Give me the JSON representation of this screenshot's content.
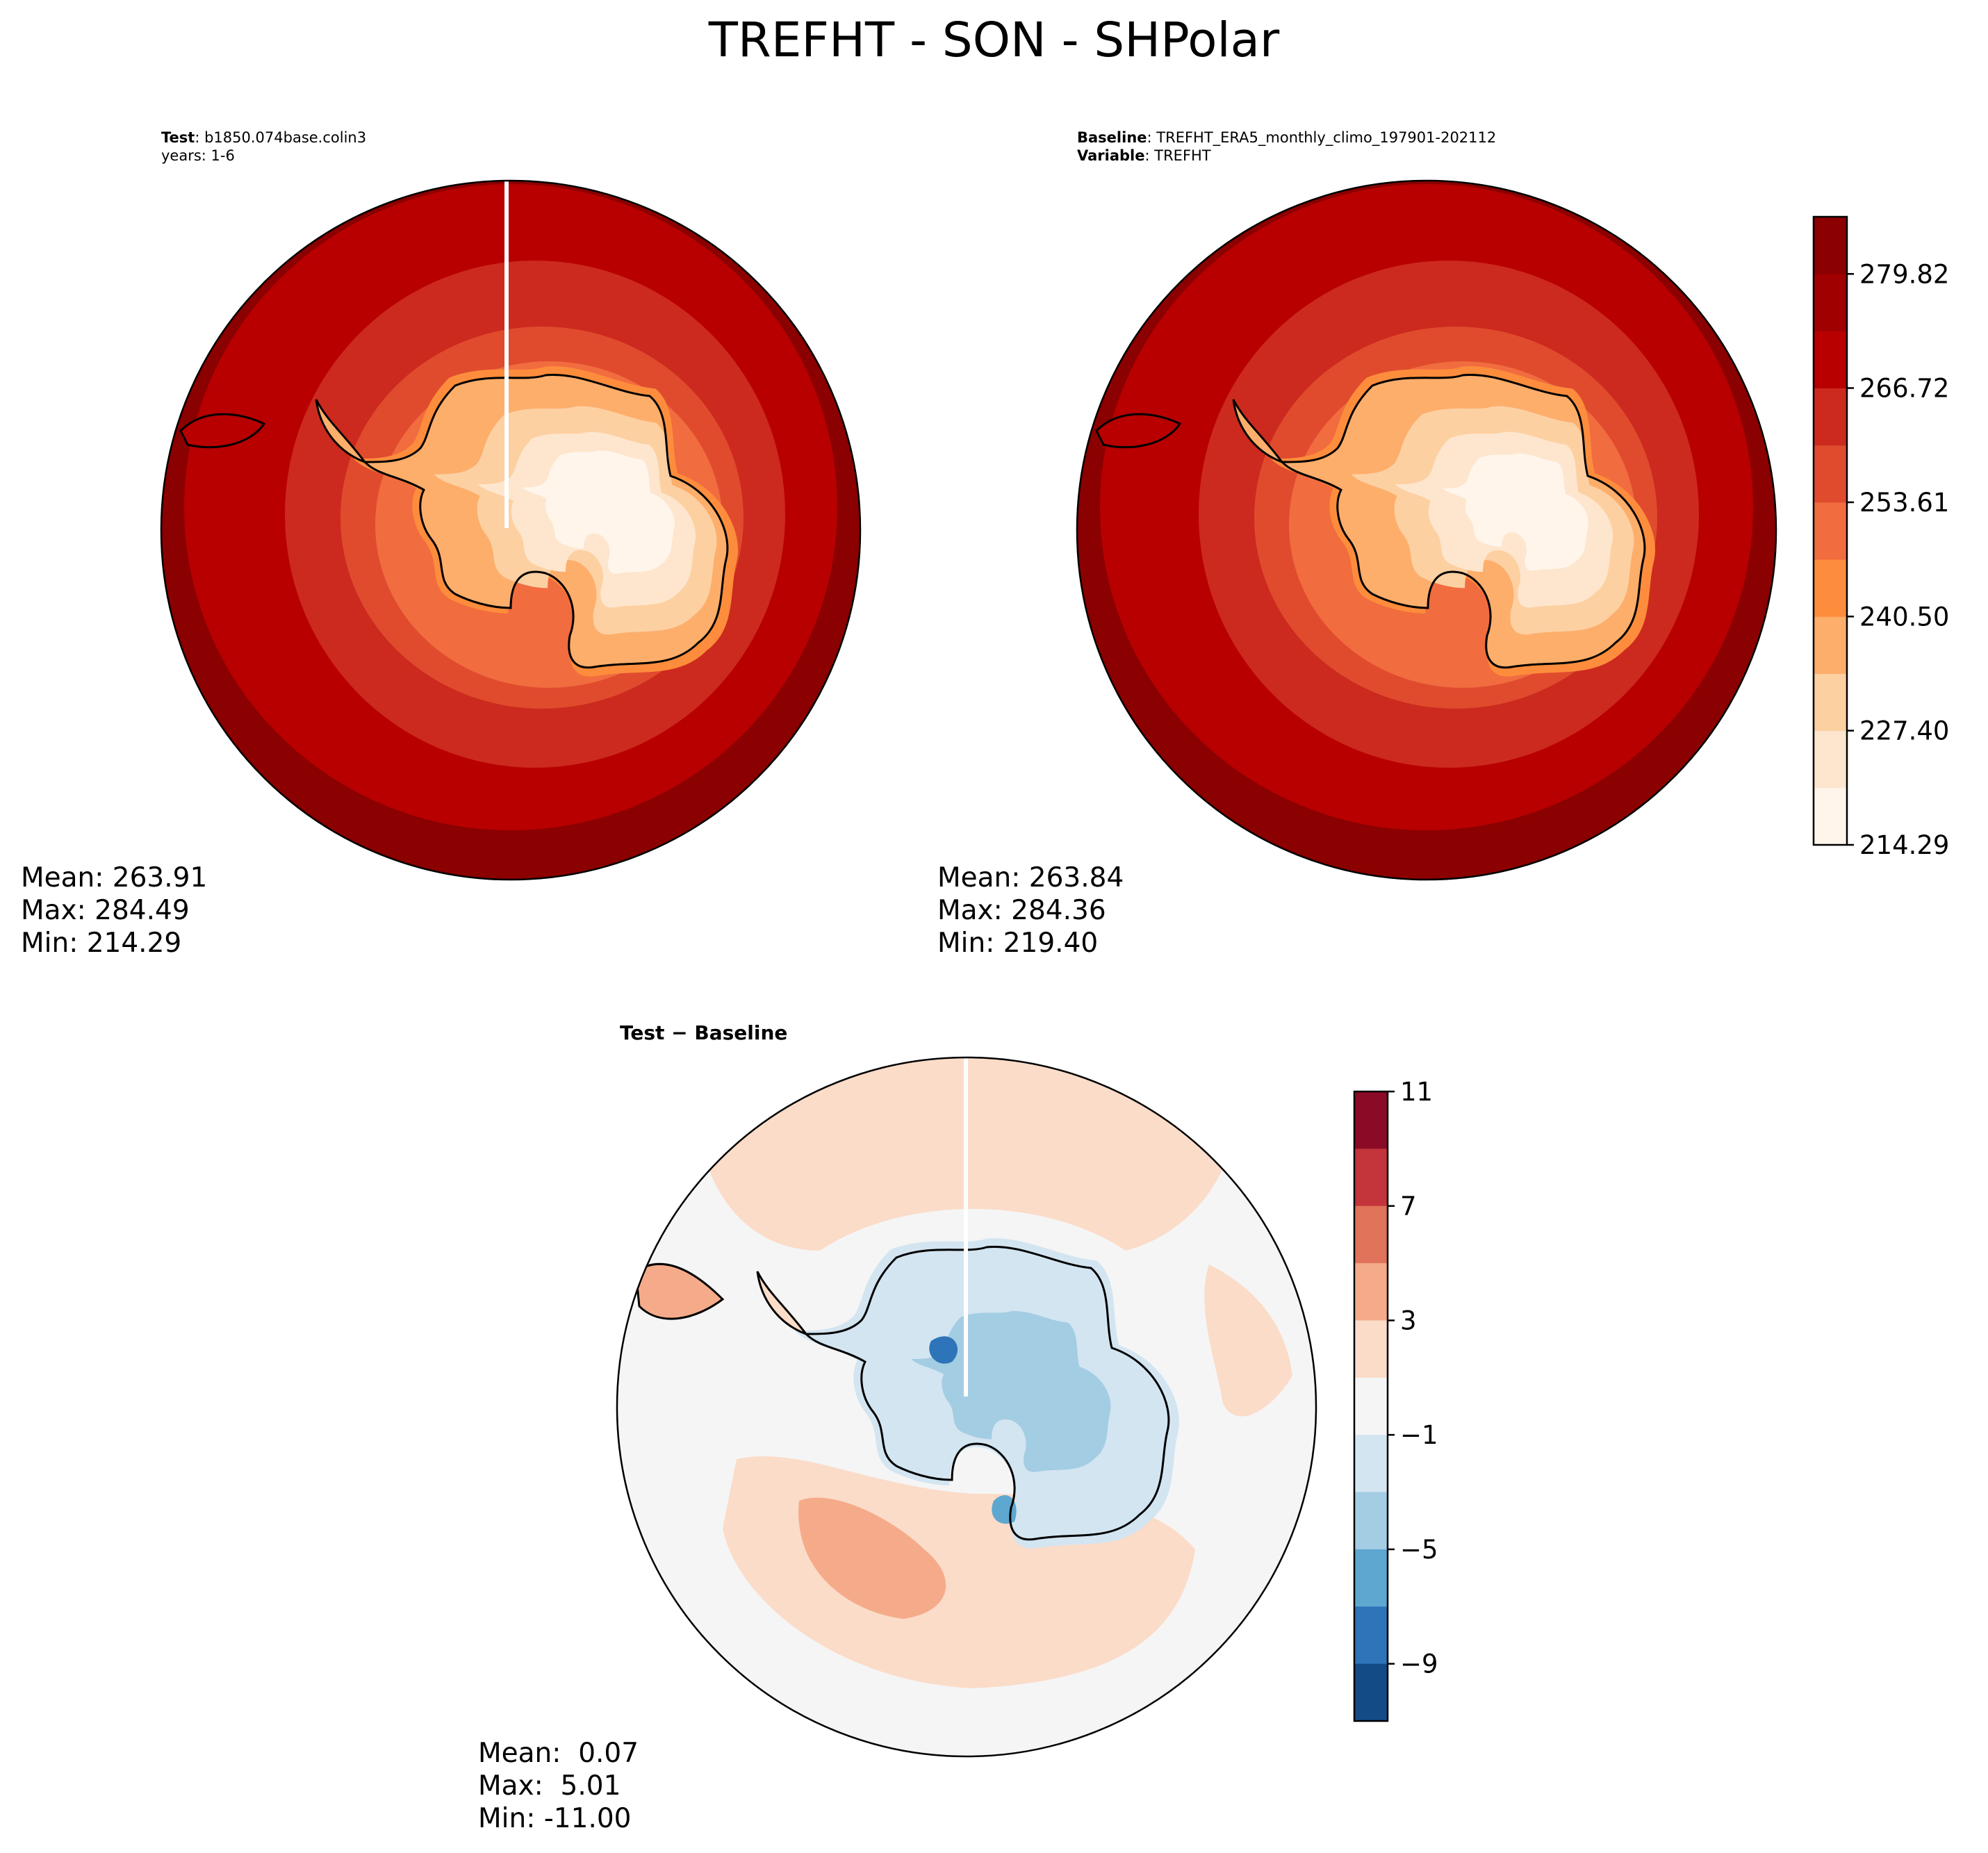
{
  "title": "TREFHT - SON - SHPolar",
  "test_panel": {
    "label_bold": "Test",
    "label_value": "b1850.074base.colin3",
    "label_line2": "years: 1-6",
    "stats": {
      "mean": "Mean: 263.91",
      "max": "Max: 284.49",
      "min": "Min: 214.29"
    }
  },
  "baseline_panel": {
    "label_bold": "Baseline",
    "label_value": "TREFHT_ERA5_monthly_climo_197901-202112",
    "label2_bold": "Variable",
    "label2_value": "TREFHT",
    "stats": {
      "mean": "Mean: 263.84",
      "max": "Max: 284.36",
      "min": "Min: 219.40"
    }
  },
  "diff_panel": {
    "title": "Test − Baseline",
    "stats": {
      "mean": "Mean:  0.07",
      "max": "Max:  5.01",
      "min": "Min: -11.00"
    }
  },
  "chart_data": [
    {
      "type": "heatmap",
      "name": "main-colorbar",
      "ticks": [
        "214.29",
        "227.40",
        "240.50",
        "253.61",
        "266.72",
        "279.82"
      ],
      "range": [
        214.29,
        286.38
      ],
      "levels": 11,
      "colors": [
        "#fff5eb",
        "#fee6ce",
        "#fdd0a2",
        "#fdae6b",
        "#fd8d3c",
        "#f16c3f",
        "#e04b2e",
        "#cc2a1e",
        "#b80000",
        "#a10000",
        "#8b0000"
      ]
    },
    {
      "type": "heatmap",
      "name": "diff-colorbar",
      "ticks": [
        "11",
        "7",
        "3",
        "−1",
        "−5",
        "−9"
      ],
      "range": [
        -11,
        11
      ],
      "levels": 11,
      "colors": [
        "#8b0a25",
        "#c3343b",
        "#e0735a",
        "#f5ab8a",
        "#fbdcc9",
        "#f5f5f5",
        "#d3e5f1",
        "#a3cde3",
        "#5ea7d1",
        "#2e74b8",
        "#134b87"
      ]
    }
  ]
}
